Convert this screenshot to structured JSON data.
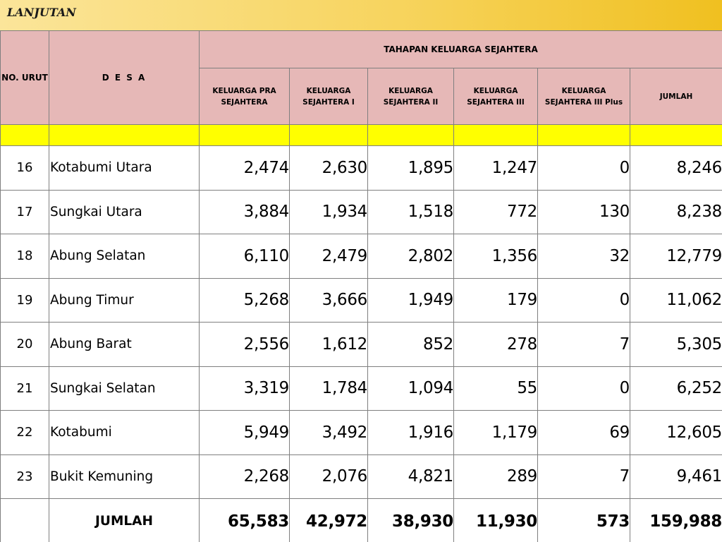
{
  "header": {
    "title": "LANJUTAN"
  },
  "table": {
    "col_no": "NO. URUT",
    "col_desa": "D E S A",
    "group_title": "TAHAPAN KELUARGA SEJAHTERA",
    "sub_columns": [
      "KELUARGA PRA SEJAHTERA",
      "KELUARGA SEJAHTERA I",
      "KELUARGA SEJAHTERA II",
      "KELUARGA SEJAHTERA III",
      "KELUARGA SEJAHTERA III Plus",
      "JUMLAH"
    ],
    "rows": [
      {
        "no": "16",
        "desa": "Kotabumi Utara",
        "values": [
          "2,474",
          "2,630",
          "1,895",
          "1,247",
          "0",
          "8,246"
        ]
      },
      {
        "no": "17",
        "desa": "Sungkai Utara",
        "values": [
          "3,884",
          "1,934",
          "1,518",
          "772",
          "130",
          "8,238"
        ]
      },
      {
        "no": "18",
        "desa": "Abung Selatan",
        "values": [
          "6,110",
          "2,479",
          "2,802",
          "1,356",
          "32",
          "12,779"
        ]
      },
      {
        "no": "19",
        "desa": "Abung Timur",
        "values": [
          "5,268",
          "3,666",
          "1,949",
          "179",
          "0",
          "11,062"
        ]
      },
      {
        "no": "20",
        "desa": "Abung Barat",
        "values": [
          "2,556",
          "1,612",
          "852",
          "278",
          "7",
          "5,305"
        ]
      },
      {
        "no": "21",
        "desa": "Sungkai Selatan",
        "values": [
          "3,319",
          "1,784",
          "1,094",
          "55",
          "0",
          "6,252"
        ]
      },
      {
        "no": "22",
        "desa": "Kotabumi",
        "values": [
          "5,949",
          "3,492",
          "1,916",
          "1,179",
          "69",
          "12,605"
        ]
      },
      {
        "no": "23",
        "desa": "Bukit Kemuning",
        "values": [
          "2,268",
          "2,076",
          "4,821",
          "289",
          "7",
          "9,461"
        ]
      }
    ],
    "total": {
      "label": "JUMLAH",
      "values": [
        "65,583",
        "42,972",
        "38,930",
        "11,930",
        "573",
        "159,988"
      ]
    }
  },
  "colors": {
    "header_bg": "#e6b8b7",
    "highlight_row": "#ffff00",
    "title_bar": "#f5d04a"
  }
}
